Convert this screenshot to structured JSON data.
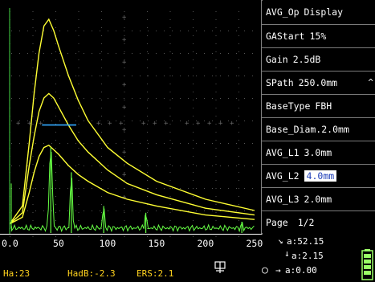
{
  "menu": {
    "items": [
      {
        "label": "AVG_Op",
        "value": "Display",
        "selected": false
      },
      {
        "label": "GAStart",
        "value": "15%",
        "selected": false
      },
      {
        "label": "Gain",
        "value": "2.5dB",
        "selected": false
      },
      {
        "label": "SPath",
        "value": "250.0mm",
        "selected": false,
        "icon": "chevron-up-icon"
      },
      {
        "label": "BaseType",
        "value": "FBH",
        "selected": false
      },
      {
        "label": "Base_Diam.",
        "value": "2.0mm",
        "selected": false
      },
      {
        "label": "AVG_L1",
        "value": "3.0mm",
        "selected": false
      },
      {
        "label": "AVG_L2",
        "value": "4.0mm",
        "selected": true
      },
      {
        "label": "AVG_L3",
        "value": "2.0mm",
        "selected": false
      },
      {
        "label": "Page",
        "value": "1/2",
        "selected": false
      }
    ]
  },
  "chart_data": {
    "type": "line",
    "x_ticks": [
      0,
      50,
      100,
      150,
      200,
      250
    ],
    "x_tick_labels": [
      "0.0",
      "50",
      "100",
      "150",
      "200",
      "250"
    ],
    "xlim": [
      0,
      250
    ],
    "grid": "dotted",
    "series": [
      {
        "kind": "avg-curve",
        "color": "#ffff33",
        "x": [
          0,
          13,
          20,
          25,
          30,
          35,
          40,
          45,
          50,
          60,
          70,
          80,
          100,
          120,
          150,
          200,
          250
        ],
        "y": [
          4,
          12,
          40,
          62,
          80,
          92,
          95,
          90,
          83,
          70,
          59,
          50,
          38,
          31,
          23,
          15,
          10
        ]
      },
      {
        "kind": "avg-curve",
        "color": "#ffff33",
        "x": [
          0,
          13,
          20,
          25,
          30,
          35,
          40,
          45,
          50,
          60,
          70,
          80,
          100,
          120,
          150,
          200,
          250
        ],
        "y": [
          4,
          9,
          30,
          43,
          54,
          60,
          62,
          60,
          56,
          48,
          41,
          36,
          28,
          22,
          17,
          11,
          8
        ]
      },
      {
        "kind": "avg-curve",
        "color": "#ffff33",
        "x": [
          0,
          13,
          20,
          25,
          30,
          35,
          40,
          45,
          50,
          60,
          70,
          80,
          100,
          120,
          150,
          200,
          250
        ],
        "y": [
          4,
          7,
          18,
          27,
          34,
          38,
          39,
          37,
          35,
          30,
          26,
          23,
          18,
          15,
          12,
          8,
          6
        ]
      },
      {
        "kind": "echo-signal",
        "color": "#66ff44",
        "peaks": [
          {
            "x": 42,
            "y": 38
          },
          {
            "x": 63,
            "y": 27
          },
          {
            "x": 96,
            "y": 12
          },
          {
            "x": 139,
            "y": 9
          },
          {
            "x": 237,
            "y": 5
          }
        ]
      }
    ],
    "gate": {
      "x_start": 33,
      "x_end": 68,
      "y": 48,
      "color": "#33aaff"
    }
  },
  "status": {
    "ha": "Ha:23",
    "hadb": "HadB:-2.3",
    "ers": "ERS:2.1",
    "readout_a": "a:52.15",
    "readout_b": "a:2.15",
    "readout_c": "a:0.00"
  },
  "colors": {
    "curve": "#ffff33",
    "signal": "#66ff44",
    "status_text": "#ffd21e",
    "selected_text": "#1f3fb8"
  }
}
